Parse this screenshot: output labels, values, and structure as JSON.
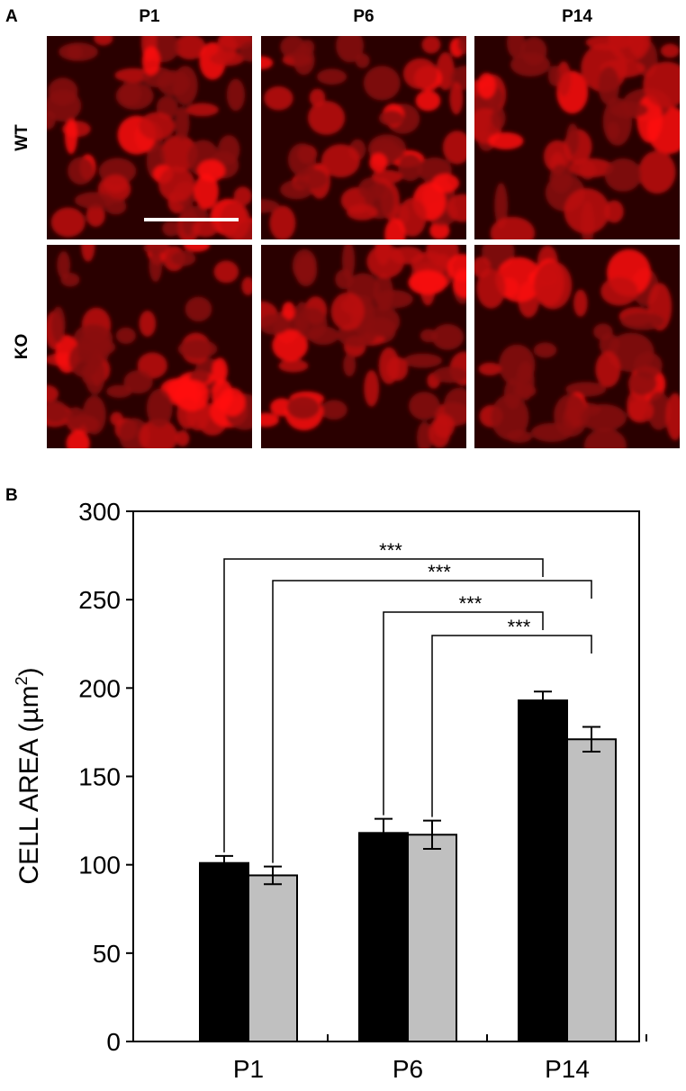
{
  "panel_a": {
    "label": "A",
    "columns": [
      "P1",
      "P6",
      "P14"
    ],
    "rows": [
      "WT",
      "KO"
    ]
  },
  "panel_b": {
    "label": "B"
  },
  "chart_data": {
    "type": "bar",
    "ylabel": [
      "CELL AREA (µm",
      "2",
      ")"
    ],
    "categories": [
      "P1",
      "P6",
      "P14"
    ],
    "series": [
      {
        "color": "#000000",
        "values": [
          101,
          118,
          193
        ],
        "errors": [
          4,
          8,
          5
        ]
      },
      {
        "color": "#c0c0c0",
        "values": [
          94,
          117,
          171
        ],
        "errors": [
          5,
          8,
          7
        ]
      }
    ],
    "ylim": [
      0,
      300
    ],
    "yticks": [
      0,
      50,
      100,
      150,
      200,
      250,
      300
    ],
    "annotations": [
      "***",
      "***",
      "***",
      "***"
    ]
  }
}
